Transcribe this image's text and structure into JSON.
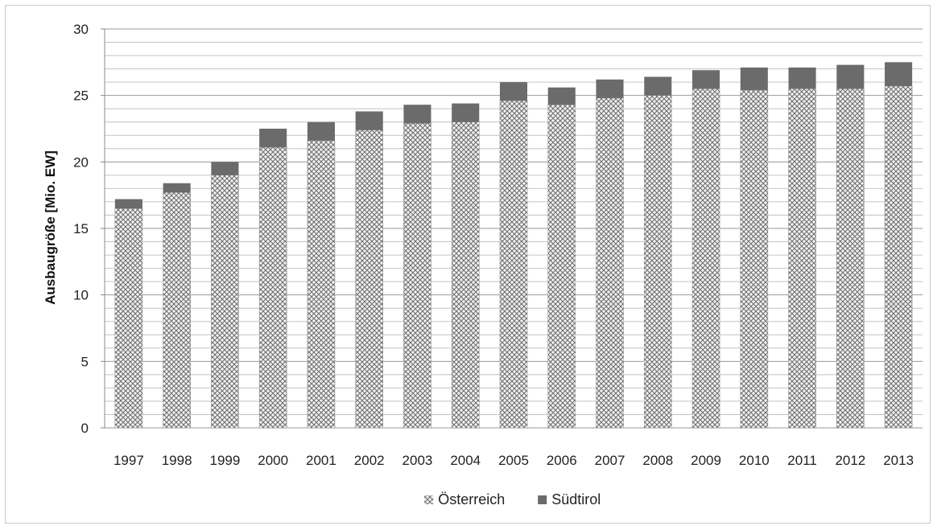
{
  "chart_data": {
    "type": "bar",
    "stacked": true,
    "title": "",
    "xlabel": "",
    "ylabel": "Ausbaugröße [Mio. EW]",
    "ylim": [
      0,
      30
    ],
    "yticks": [
      0,
      5,
      10,
      15,
      20,
      25,
      30
    ],
    "minor_grid_step": 1,
    "grid": true,
    "legend_position": "bottom",
    "categories": [
      "1997",
      "1998",
      "1999",
      "2000",
      "2001",
      "2002",
      "2003",
      "2004",
      "2005",
      "2006",
      "2007",
      "2008",
      "2009",
      "2010",
      "2011",
      "2012",
      "2013"
    ],
    "series": [
      {
        "name": "Österreich",
        "pattern": "crosshatch",
        "color": "#7a7a7a",
        "values": [
          16.5,
          17.7,
          19.0,
          21.1,
          21.6,
          22.4,
          22.9,
          23.0,
          24.6,
          24.3,
          24.8,
          25.0,
          25.5,
          25.4,
          25.5,
          25.5,
          25.7
        ]
      },
      {
        "name": "Südtirol",
        "pattern": "solid",
        "color": "#6b6b6b",
        "values": [
          0.7,
          0.7,
          1.0,
          1.4,
          1.4,
          1.4,
          1.4,
          1.4,
          1.4,
          1.3,
          1.4,
          1.4,
          1.4,
          1.7,
          1.6,
          1.8,
          1.8
        ]
      }
    ]
  }
}
